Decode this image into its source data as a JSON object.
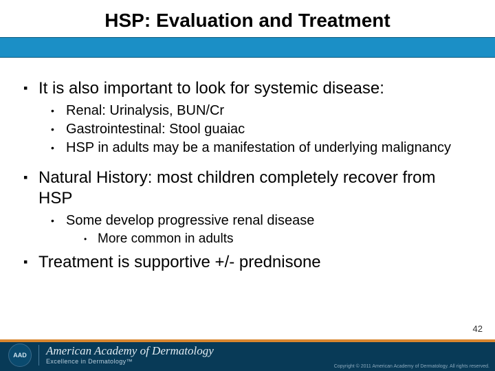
{
  "slide": {
    "title": "HSP: Evaluation and Treatment",
    "page_number": "42",
    "bullets": {
      "b1": "It is also important to look for systemic disease:",
      "b1_1": "Renal: Urinalysis, BUN/Cr",
      "b1_2": "Gastrointestinal: Stool guaiac",
      "b1_3": "HSP in adults may be a manifestation of underlying malignancy",
      "b2": "Natural History: most children completely recover from HSP",
      "b2_1": "Some develop progressive renal disease",
      "b2_1_1": "More common in adults",
      "b3": "Treatment is supportive +/- prednisone"
    }
  },
  "footer": {
    "badge": "AAD",
    "org_name": "American Academy of Dermatology",
    "tagline": "Excellence in Dermatology™",
    "copyright": "Copyright © 2011 American Academy of Dermatology. All rights reserved."
  },
  "colors": {
    "blue_band": "#1b8fc6",
    "footer_bg": "#083a57",
    "orange": "#d9862f"
  }
}
